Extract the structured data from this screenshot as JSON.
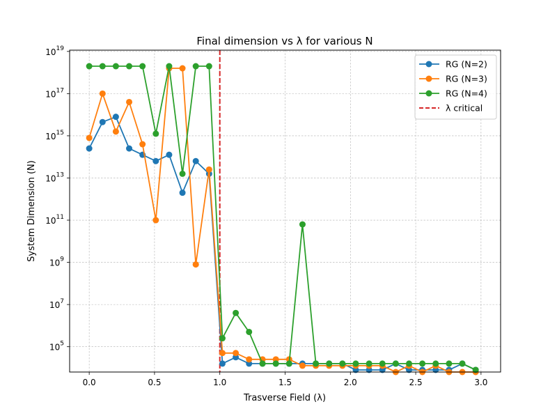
{
  "chart_data": {
    "type": "line",
    "title": "Final dimension vs λ for various N",
    "xlabel": "Trasverse Field (λ)",
    "ylabel": "System Dimension (N)",
    "xlim": [
      -0.15,
      3.15
    ],
    "ylim_log10": [
      3.8,
      19.06
    ],
    "yscale": "log",
    "grid": true,
    "legend_position": "upper right",
    "x_ticks": [
      0.0,
      0.5,
      1.0,
      1.5,
      2.0,
      2.5,
      3.0
    ],
    "x_tick_labels": [
      "0.0",
      "0.5",
      "1.0",
      "1.5",
      "2.0",
      "2.5",
      "3.0"
    ],
    "y_ticks_log10": [
      5,
      7,
      9,
      11,
      13,
      15,
      17,
      19
    ],
    "y_tick_labels": [
      {
        "base": "10",
        "exp": "5"
      },
      {
        "base": "10",
        "exp": "7"
      },
      {
        "base": "10",
        "exp": "9"
      },
      {
        "base": "10",
        "exp": "11"
      },
      {
        "base": "10",
        "exp": "13"
      },
      {
        "base": "10",
        "exp": "15"
      },
      {
        "base": "10",
        "exp": "17"
      },
      {
        "base": "10",
        "exp": "19"
      }
    ],
    "x": [
      0.0,
      0.102,
      0.204,
      0.306,
      0.408,
      0.51,
      0.612,
      0.714,
      0.816,
      0.918,
      1.02,
      1.122,
      1.224,
      1.327,
      1.429,
      1.531,
      1.633,
      1.735,
      1.837,
      1.939,
      2.041,
      2.143,
      2.245,
      2.347,
      2.449,
      2.551,
      2.653,
      2.755,
      2.857,
      2.959
    ],
    "series": [
      {
        "name": "RG (N=2)",
        "color": "#1f77b4",
        "marker": "circle",
        "values_log10": [
          14.4,
          15.65,
          15.9,
          14.4,
          14.1,
          13.8,
          14.1,
          12.3,
          13.8,
          13.2,
          4.2,
          4.5,
          4.2,
          4.2,
          4.2,
          4.2,
          4.2,
          4.2,
          4.2,
          4.2,
          3.9,
          3.9,
          3.9,
          4.2,
          3.9,
          3.9,
          3.9,
          3.9,
          4.2,
          3.9
        ]
      },
      {
        "name": "RG (N=3)",
        "color": "#ff7f0e",
        "marker": "circle",
        "values_log10": [
          14.9,
          17.0,
          15.2,
          16.6,
          14.6,
          11.0,
          18.2,
          18.2,
          8.9,
          13.4,
          4.7,
          4.7,
          4.4,
          4.4,
          4.4,
          4.4,
          4.1,
          4.1,
          4.1,
          4.1,
          4.1,
          4.1,
          4.1,
          3.8,
          4.1,
          3.8,
          4.1,
          3.8,
          3.8,
          3.8
        ]
      },
      {
        "name": "RG (N=4)",
        "color": "#2ca02c",
        "marker": "circle",
        "values_log10": [
          18.3,
          18.3,
          18.3,
          18.3,
          18.3,
          15.1,
          18.3,
          13.2,
          18.3,
          18.3,
          5.4,
          6.6,
          5.7,
          4.2,
          4.2,
          4.2,
          10.8,
          4.2,
          4.2,
          4.2,
          4.2,
          4.2,
          4.2,
          4.2,
          4.2,
          4.2,
          4.2,
          4.2,
          4.2,
          3.9
        ]
      }
    ],
    "reference_line": {
      "name": "λ critical",
      "x": 1.0,
      "color": "#d62728",
      "style": "dashed"
    }
  }
}
